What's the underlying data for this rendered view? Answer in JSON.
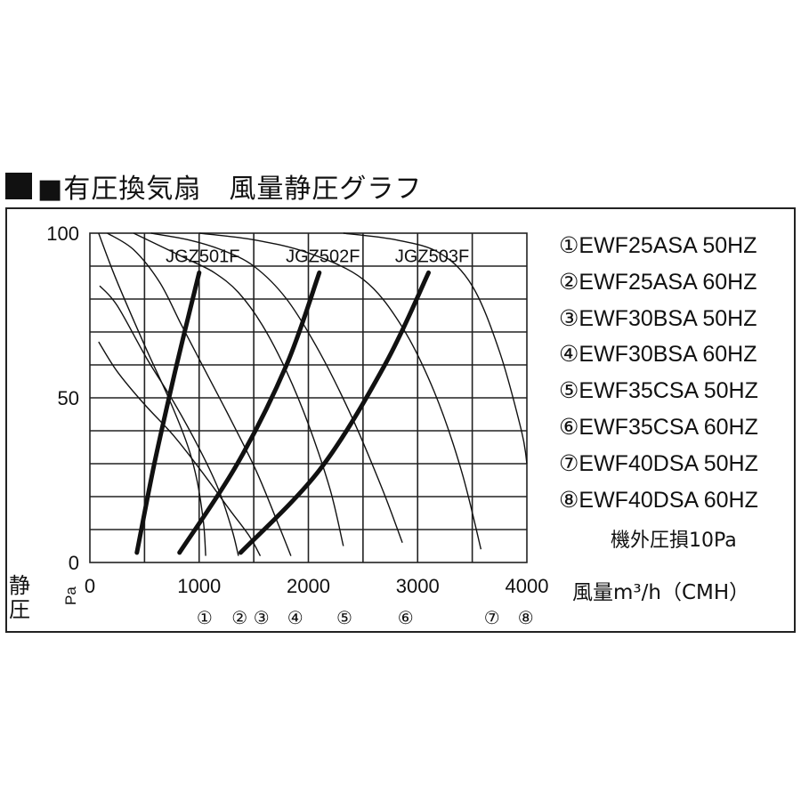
{
  "title": "■有圧換気扇　風量静圧グラフ",
  "legend": [
    "①EWF25ASA 50HZ",
    "②EWF25ASA 60HZ",
    "③EWF30BSA 50HZ",
    "④EWF30BSA 60HZ",
    "⑤EWF35CSA 50HZ",
    "⑥EWF35CSA 60HZ",
    "⑦EWF40DSA 50HZ",
    "⑧EWF40DSA 60HZ"
  ],
  "note": "機外圧損10Pa",
  "y_axis_label": "静圧",
  "y_axis_unit": "Pa",
  "x_axis_label": "風量m³/h（CMH）",
  "chart_data": {
    "type": "line",
    "xlim": [
      0,
      4000
    ],
    "ylim": [
      0,
      100
    ],
    "x_ticks": [
      "0",
      "1000",
      "2000",
      "3000",
      "4000"
    ],
    "y_ticks": [
      "0",
      "50",
      "100"
    ],
    "grid": true,
    "fan_curves": [
      {
        "marker": "①",
        "points": [
          [
            80,
            100
          ],
          [
            240,
            86
          ],
          [
            500,
            66
          ],
          [
            720,
            50
          ],
          [
            890,
            36
          ],
          [
            980,
            25
          ],
          [
            1040,
            12
          ],
          [
            1060,
            2
          ]
        ]
      },
      {
        "marker": "②",
        "points": [
          [
            90,
            84
          ],
          [
            250,
            78
          ],
          [
            520,
            62
          ],
          [
            780,
            48
          ],
          [
            1010,
            34
          ],
          [
            1180,
            22
          ],
          [
            1300,
            10
          ],
          [
            1360,
            2
          ]
        ]
      },
      {
        "marker": "③",
        "points": [
          [
            80,
            67
          ],
          [
            250,
            58
          ],
          [
            500,
            48
          ],
          [
            780,
            38
          ],
          [
            1060,
            26
          ],
          [
            1280,
            16
          ],
          [
            1460,
            8
          ],
          [
            1560,
            2
          ]
        ]
      },
      {
        "marker": "④",
        "points": [
          [
            160,
            100
          ],
          [
            400,
            95
          ],
          [
            640,
            85
          ],
          [
            840,
            72
          ],
          [
            1060,
            58
          ],
          [
            1280,
            44
          ],
          [
            1520,
            28
          ],
          [
            1720,
            12
          ],
          [
            1840,
            2
          ]
        ]
      },
      {
        "marker": "⑤",
        "points": [
          [
            400,
            100
          ],
          [
            650,
            96
          ],
          [
            900,
            92
          ],
          [
            1140,
            88
          ],
          [
            1360,
            82
          ],
          [
            1580,
            72
          ],
          [
            1800,
            58
          ],
          [
            2000,
            42
          ],
          [
            2200,
            22
          ],
          [
            2320,
            5
          ]
        ]
      },
      {
        "marker": "⑥",
        "points": [
          [
            560,
            100
          ],
          [
            900,
            98
          ],
          [
            1200,
            95
          ],
          [
            1500,
            90
          ],
          [
            1800,
            80
          ],
          [
            2100,
            64
          ],
          [
            2400,
            44
          ],
          [
            2680,
            22
          ],
          [
            2860,
            6
          ]
        ]
      },
      {
        "marker": "⑦",
        "points": [
          [
            1000,
            100
          ],
          [
            1500,
            98
          ],
          [
            2000,
            94
          ],
          [
            2500,
            86
          ],
          [
            2850,
            72
          ],
          [
            3150,
            52
          ],
          [
            3400,
            28
          ],
          [
            3580,
            4
          ]
        ]
      },
      {
        "marker": "⑧",
        "points": [
          [
            2320,
            100
          ],
          [
            2800,
            98
          ],
          [
            3200,
            94
          ],
          [
            3500,
            84
          ],
          [
            3750,
            64
          ],
          [
            3950,
            40
          ],
          [
            4000,
            30
          ]
        ]
      }
    ],
    "system_curves": [
      {
        "name": "JGZ501F",
        "points": [
          [
            430,
            3
          ],
          [
            590,
            30
          ],
          [
            780,
            58
          ],
          [
            1000,
            88
          ]
        ]
      },
      {
        "name": "JGZ502F",
        "points": [
          [
            820,
            3
          ],
          [
            1350,
            30
          ],
          [
            1800,
            60
          ],
          [
            2100,
            88
          ]
        ]
      },
      {
        "name": "JGZ503F",
        "points": [
          [
            1380,
            3
          ],
          [
            2100,
            28
          ],
          [
            2700,
            60
          ],
          [
            3100,
            88
          ]
        ]
      }
    ],
    "x_markers": [
      {
        "label": "①",
        "x": 1050
      },
      {
        "label": "②",
        "x": 1370
      },
      {
        "label": "③",
        "x": 1570
      },
      {
        "label": "④",
        "x": 1880
      },
      {
        "label": "⑤",
        "x": 2330
      },
      {
        "label": "⑥",
        "x": 2890
      },
      {
        "label": "⑦",
        "x": 3680
      },
      {
        "label": "⑧",
        "x": 3990
      }
    ]
  }
}
